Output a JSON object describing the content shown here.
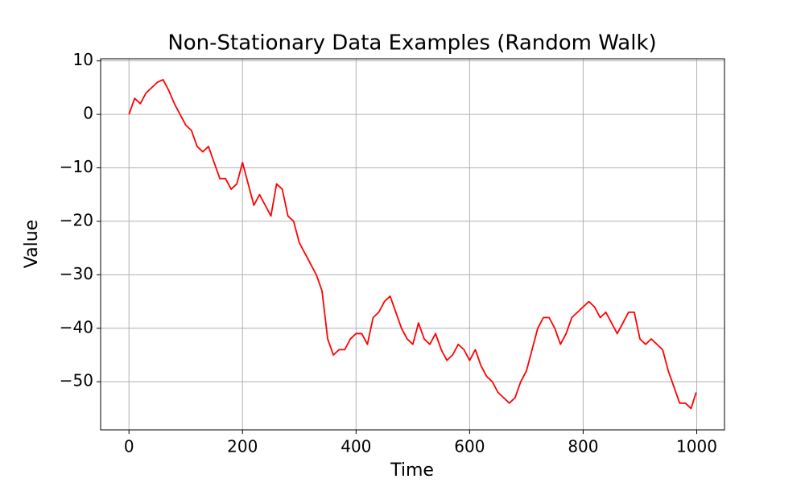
{
  "chart_data": {
    "type": "line",
    "title": "Non-Stationary Data Examples (Random Walk)",
    "x_label": "Time",
    "y_label": "Value",
    "x": [
      0,
      10,
      20,
      30,
      40,
      50,
      60,
      70,
      80,
      90,
      100,
      110,
      120,
      130,
      140,
      150,
      160,
      170,
      180,
      190,
      200,
      210,
      220,
      230,
      240,
      250,
      260,
      270,
      280,
      290,
      300,
      310,
      320,
      330,
      340,
      350,
      360,
      370,
      380,
      390,
      400,
      410,
      420,
      430,
      440,
      450,
      460,
      470,
      480,
      490,
      500,
      510,
      520,
      530,
      540,
      550,
      560,
      570,
      580,
      590,
      600,
      610,
      620,
      630,
      640,
      650,
      660,
      670,
      680,
      690,
      700,
      710,
      720,
      730,
      740,
      750,
      760,
      770,
      780,
      790,
      800,
      810,
      820,
      830,
      840,
      850,
      860,
      870,
      880,
      890,
      900,
      910,
      920,
      930,
      940,
      950,
      960,
      970,
      980,
      990,
      999
    ],
    "series": [
      {
        "name": "Random Walk",
        "color": "#ff0000",
        "values": [
          0,
          3,
          2,
          4,
          5,
          6,
          6.5,
          4.5,
          2,
          0,
          -2,
          -3,
          -6,
          -7,
          -6,
          -9,
          -12,
          -12,
          -14,
          -13,
          -9,
          -13,
          -17,
          -15,
          -17,
          -19,
          -13,
          -14,
          -19,
          -20,
          -24,
          -26,
          -28,
          -30,
          -33,
          -42,
          -45,
          -44,
          -44,
          -42,
          -41,
          -41,
          -43,
          -38,
          -37,
          -35,
          -34,
          -37,
          -40,
          -42,
          -43,
          -39,
          -42,
          -43,
          -41,
          -44,
          -46,
          -45,
          -43,
          -44,
          -46,
          -44,
          -47,
          -49,
          -50,
          -52,
          -53,
          -54,
          -53,
          -50,
          -48,
          -44,
          -40,
          -38,
          -38,
          -40,
          -43,
          -41,
          -38,
          -37,
          -36,
          -35,
          -36,
          -38,
          -37,
          -39,
          -41,
          -39,
          -37,
          -37,
          -42,
          -43,
          -42,
          -43,
          -44,
          -48,
          -51,
          -54,
          -54,
          -55,
          -52
        ]
      }
    ],
    "xlim": [
      -49.95,
      1048.95
    ],
    "ylim": [
      -59.0,
      10.4
    ],
    "xticks": [
      0,
      200,
      400,
      600,
      800,
      1000
    ],
    "yticks": [
      {
        "value": -50,
        "label": "−50"
      },
      {
        "value": -40,
        "label": "−40"
      },
      {
        "value": -30,
        "label": "−30"
      },
      {
        "value": -20,
        "label": "−20"
      },
      {
        "value": -10,
        "label": "−10"
      },
      0,
      10
    ],
    "grid": true
  }
}
